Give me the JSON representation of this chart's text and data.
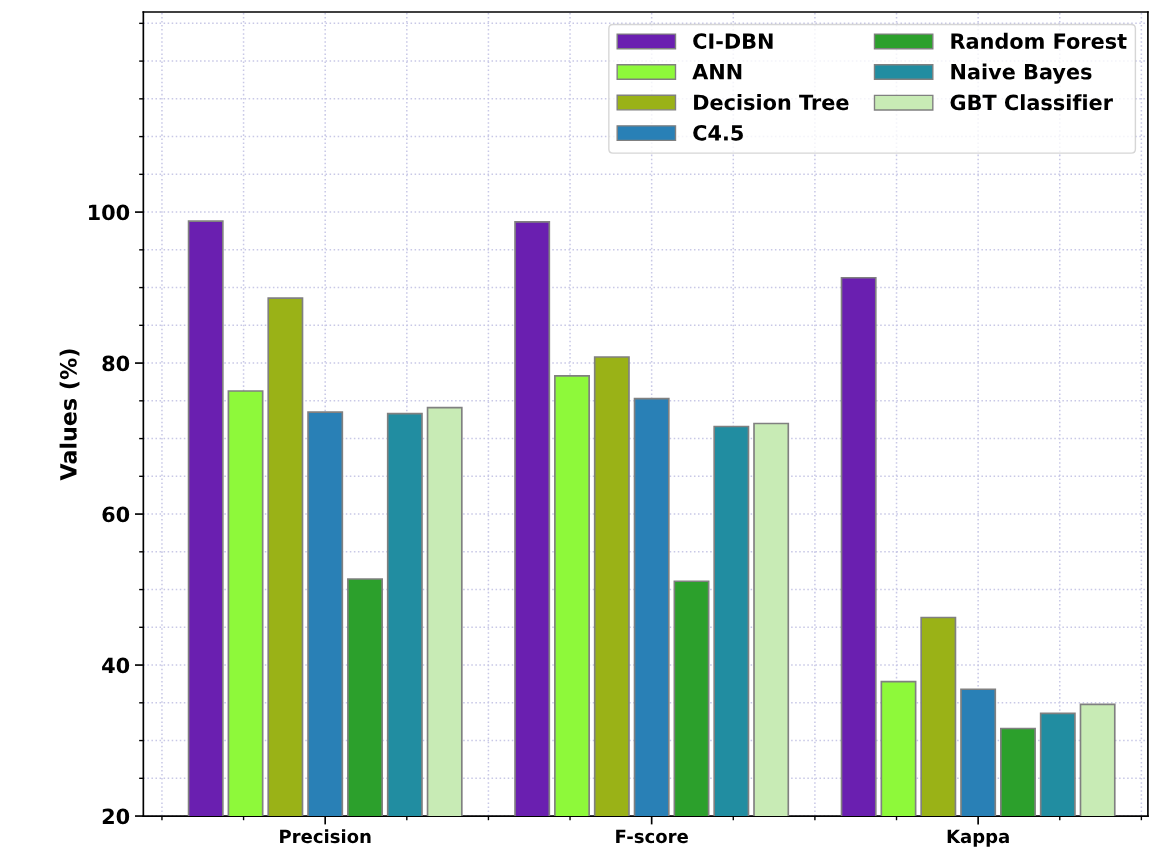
{
  "chart_data": {
    "type": "bar",
    "ylabel": "Values (%)",
    "categories": [
      "Precision",
      "F-score",
      "Kappa"
    ],
    "series": [
      {
        "name": "CI-DBN",
        "color": "#6a1fb0",
        "values": [
          98.8,
          98.7,
          91.3
        ]
      },
      {
        "name": "ANN",
        "color": "#8ef93a",
        "values": [
          76.3,
          78.3,
          37.8
        ]
      },
      {
        "name": "Decision Tree",
        "color": "#9ab217",
        "values": [
          88.6,
          80.8,
          46.3
        ]
      },
      {
        "name": "C4.5",
        "color": "#2980b6",
        "values": [
          73.5,
          75.3,
          36.8
        ]
      },
      {
        "name": "Random Forest",
        "color": "#2ca02c",
        "values": [
          51.4,
          51.1,
          31.6
        ]
      },
      {
        "name": "Naive Bayes",
        "color": "#218da1",
        "values": [
          73.3,
          71.6,
          33.6
        ]
      },
      {
        "name": "GBT Classifier",
        "color": "#c8ebb5",
        "values": [
          74.1,
          72.0,
          34.8
        ]
      }
    ],
    "ylim": [
      20,
      126.5
    ],
    "yticks": [
      20,
      40,
      60,
      80,
      100
    ],
    "grid": true,
    "legend": "top right"
  }
}
